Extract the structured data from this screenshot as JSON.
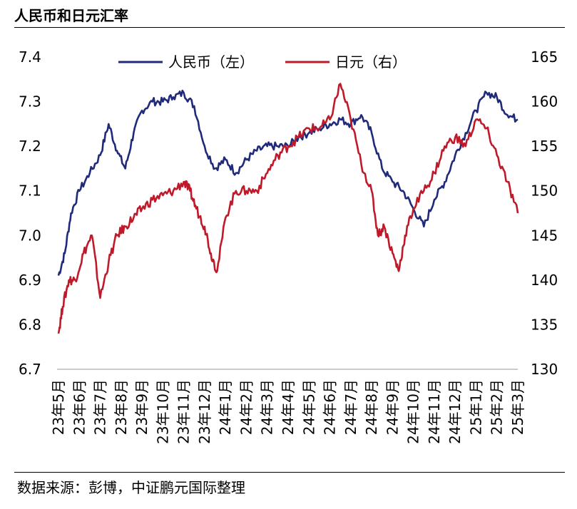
{
  "header": {
    "title": "人民币和日元汇率"
  },
  "footer": {
    "source": "数据来源：彭博，中证鹏元国际整理"
  },
  "chart_data": {
    "type": "line",
    "title": "人民币和日元汇率",
    "x_labels": [
      "23年5月",
      "23年6月",
      "23年7月",
      "23年8月",
      "23年9月",
      "23年10月",
      "23年11月",
      "23年12月",
      "24年1月",
      "24年2月",
      "24年3月",
      "24年4月",
      "24年5月",
      "24年6月",
      "24年7月",
      "24年8月",
      "24年9月",
      "24年10月",
      "24年11月",
      "24年12月",
      "25年1月",
      "25年2月",
      "25年3月"
    ],
    "y_left": {
      "ticks": [
        "7.4",
        "7.3",
        "7.2",
        "7.1",
        "7.0",
        "6.9",
        "6.8",
        "6.7"
      ],
      "range": [
        6.7,
        7.4
      ]
    },
    "y_right": {
      "ticks": [
        "165",
        "160",
        "155",
        "150",
        "145",
        "140",
        "135",
        "130"
      ],
      "range": [
        130,
        165
      ]
    },
    "legend_placement": "top",
    "series": [
      {
        "name": "人民币（左）",
        "axis": "left",
        "color": "#1f2a7a",
        "x": [
          0,
          0.3,
          0.6,
          1,
          1.5,
          2,
          2.4,
          2.8,
          3.2,
          3.6,
          4,
          4.5,
          5,
          5.5,
          6,
          6.5,
          7,
          7.5,
          8,
          8.5,
          9,
          9.5,
          10,
          10.5,
          11,
          11.5,
          12,
          12.5,
          13,
          13.5,
          14,
          14.5,
          15,
          15.5,
          16,
          16.5,
          17,
          17.5,
          18,
          18.5,
          19,
          19.5,
          20,
          20.5,
          21,
          21.5,
          22
        ],
        "values": [
          6.91,
          6.96,
          7.05,
          7.1,
          7.14,
          7.18,
          7.25,
          7.19,
          7.15,
          7.23,
          7.28,
          7.3,
          7.3,
          7.31,
          7.32,
          7.29,
          7.2,
          7.15,
          7.17,
          7.14,
          7.17,
          7.19,
          7.2,
          7.2,
          7.2,
          7.22,
          7.23,
          7.24,
          7.25,
          7.26,
          7.25,
          7.27,
          7.23,
          7.15,
          7.12,
          7.1,
          7.06,
          7.02,
          7.08,
          7.12,
          7.18,
          7.23,
          7.28,
          7.32,
          7.31,
          7.27,
          7.26
        ]
      },
      {
        "name": "日元（右）",
        "axis": "right",
        "color": "#c0192a",
        "x": [
          0,
          0.2,
          0.5,
          0.8,
          1.2,
          1.6,
          2,
          2.4,
          2.8,
          3.2,
          3.6,
          4,
          4.5,
          5,
          5.5,
          6,
          6.3,
          6.6,
          7,
          7.3,
          7.6,
          8,
          8.5,
          9,
          9.5,
          10,
          10.5,
          11,
          11.5,
          12,
          12.5,
          13,
          13.5,
          14,
          14.5,
          15,
          15.3,
          15.6,
          16,
          16.3,
          16.6,
          17,
          17.5,
          18,
          18.5,
          19,
          19.5,
          20,
          20.5,
          21,
          21.5,
          22
        ],
        "values": [
          134,
          137,
          140,
          140,
          143,
          145,
          138,
          142,
          145,
          146,
          147,
          148,
          149,
          149.5,
          150,
          151,
          150,
          148,
          146,
          143,
          141,
          147,
          150,
          150,
          150,
          152,
          154,
          155,
          156,
          157,
          157,
          158,
          162,
          158,
          153,
          150,
          145,
          146,
          143,
          141,
          145,
          148,
          150,
          152,
          155,
          156,
          155,
          158,
          157,
          154,
          151,
          147.5
        ]
      }
    ]
  }
}
